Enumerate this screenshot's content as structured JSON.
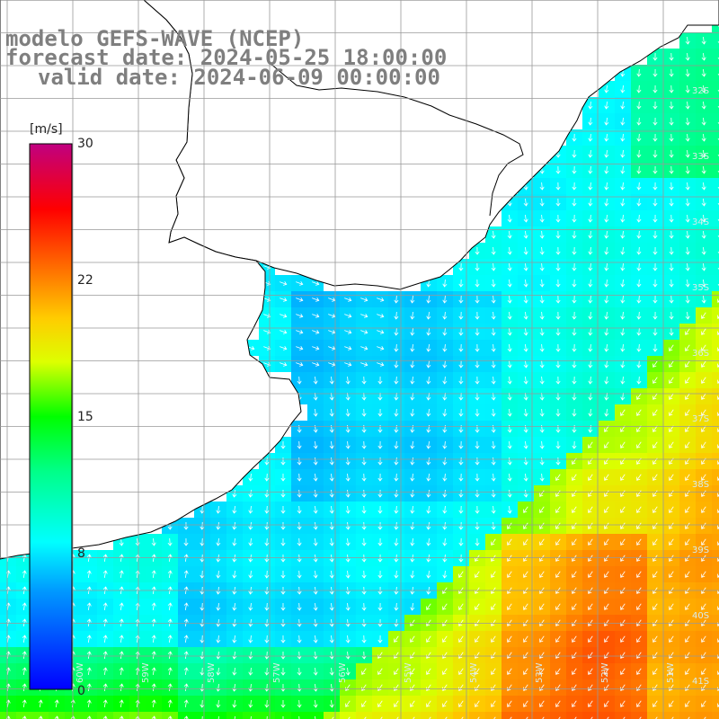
{
  "title": {
    "line1": "modelo GEFS-WAVE (NCEP)",
    "line2": "forecast date: 2024-05-25 18:00:00",
    "line3": "valid date: 2024-06-09 00:00:00"
  },
  "colorbar": {
    "unit": "[m/s]",
    "ticks": [
      "30",
      "22",
      "15",
      "8",
      "0"
    ],
    "tick_values": [
      30,
      22,
      15,
      8,
      0
    ],
    "range": [
      0,
      30
    ],
    "colors": [
      "#0000ff",
      "#00aaff",
      "#00ffff",
      "#00ff00",
      "#ffff00",
      "#ff9900",
      "#ff0000",
      "#c00080"
    ]
  },
  "map": {
    "lat_labels": [
      "32S",
      "33S",
      "34S",
      "35S",
      "36S",
      "37S",
      "38S",
      "39S",
      "40S",
      "41S"
    ],
    "lon_labels": [
      "60W",
      "59W",
      "58W",
      "57W",
      "56W",
      "55W",
      "54W",
      "53W",
      "52W",
      "51W"
    ],
    "land_color": "#ffffff",
    "coast_color": "#000000",
    "grid_color": "#999999",
    "arrow_color": "#ffffff",
    "region": "Río de la Plata / Southwest Atlantic"
  }
}
